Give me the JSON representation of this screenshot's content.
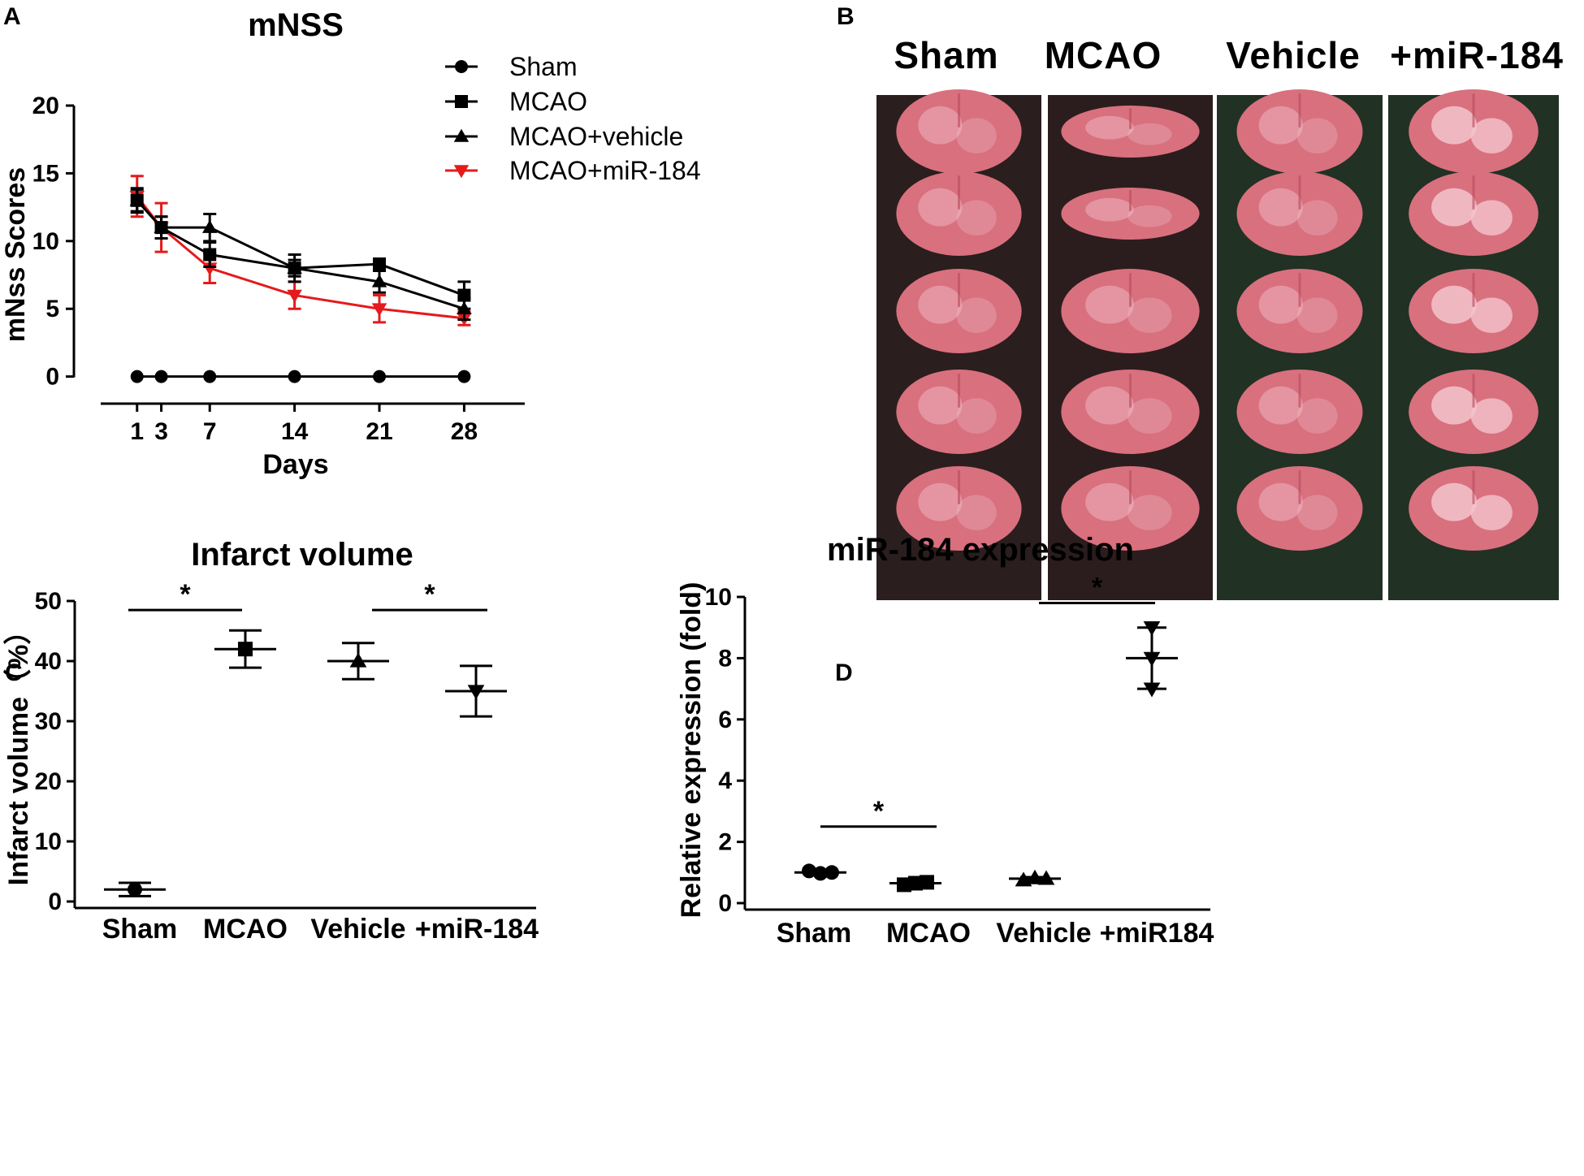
{
  "panels": {
    "A": {
      "letter": "A"
    },
    "B": {
      "letter": "B"
    },
    "C": {
      "letter": "C"
    },
    "D": {
      "letter": "D"
    }
  },
  "photo_panel": {
    "columns": [
      "Sham",
      "MCAO",
      "Vehicle",
      "+miR-184"
    ],
    "slices_per_column": 5,
    "background_colors": [
      "#2a1e1e",
      "#2b1d1d",
      "#213124",
      "#213124"
    ],
    "tissue_color": "#d9707e",
    "tissue_light_color": "#f2c4cc"
  },
  "chart_data": [
    {
      "id": "A",
      "type": "line",
      "title": "mNSS",
      "xlabel": "Days",
      "ylabel": "mNss Scores",
      "x": [
        1,
        3,
        7,
        14,
        21,
        28
      ],
      "xlim": [
        -2,
        33
      ],
      "ylim": [
        -2,
        20
      ],
      "yticks": [
        0,
        5,
        10,
        15,
        20
      ],
      "xticks": [
        1,
        3,
        7,
        14,
        21,
        28
      ],
      "legend_position": "top-right",
      "series": [
        {
          "name": "Sham",
          "marker": "circle",
          "color": "#000000",
          "values": [
            0,
            0,
            0,
            0,
            0,
            0
          ],
          "errors": [
            0,
            0,
            0,
            0,
            0,
            0
          ]
        },
        {
          "name": "MCAO",
          "marker": "square",
          "color": "#000000",
          "values": [
            13,
            11,
            9,
            8,
            8.3,
            6
          ],
          "errors": [
            0.9,
            0.8,
            0.9,
            1.0,
            0.4,
            1.0
          ]
        },
        {
          "name": "MCAO+vehicle",
          "marker": "triangle-up",
          "color": "#000000",
          "values": [
            13,
            11,
            11,
            8,
            7,
            5
          ],
          "errors": [
            0.8,
            0.8,
            1.0,
            0.6,
            0.8,
            0.8
          ]
        },
        {
          "name": "MCAO+miR-184",
          "marker": "triangle-down",
          "color": "#e41a1c",
          "values": [
            13.3,
            11,
            8,
            6,
            5,
            4.3
          ],
          "errors": [
            1.5,
            1.8,
            1.1,
            1.0,
            1.0,
            0.5
          ]
        }
      ]
    },
    {
      "id": "C",
      "type": "scatter",
      "title": "Infarct volume",
      "xlabel": "",
      "ylabel": "Infarct volume（%）",
      "categories": [
        "Sham",
        "MCAO",
        "Vehicle",
        "+miR-184"
      ],
      "markers": [
        "circle",
        "square",
        "triangle-up",
        "triangle-down"
      ],
      "means": [
        2,
        42,
        40,
        35
      ],
      "errors": [
        1.1,
        3.1,
        3.0,
        4.2
      ],
      "ylim": [
        0,
        50
      ],
      "yticks": [
        0,
        10,
        20,
        30,
        40,
        50
      ],
      "significance": [
        {
          "from": 0,
          "to": 1,
          "y": 48.5,
          "label": "*"
        },
        {
          "from": 2,
          "to": 3,
          "y": 48.5,
          "label": "*"
        }
      ]
    },
    {
      "id": "D",
      "type": "scatter",
      "title": "miR-184 expression",
      "xlabel": "",
      "ylabel": "Relative expression (fold)",
      "categories": [
        "Sham",
        "MCAO",
        "Vehicle",
        "+miR184"
      ],
      "markers": [
        "circle",
        "square",
        "triangle-up",
        "triangle-down"
      ],
      "means": [
        1.0,
        0.65,
        0.8,
        8.0
      ],
      "errors": [
        0.05,
        0.05,
        0.05,
        1.0
      ],
      "points": [
        [
          1.05,
          0.97,
          1.0
        ],
        [
          0.6,
          0.65,
          0.68
        ],
        [
          0.75,
          0.82,
          0.8
        ],
        [
          9.0,
          8.0,
          7.0
        ]
      ],
      "ylim": [
        0,
        10
      ],
      "yticks": [
        0,
        2,
        4,
        6,
        8,
        10
      ],
      "significance": [
        {
          "from": 0,
          "to": 1,
          "y": 2.5,
          "label": "*"
        },
        {
          "from": 2.45,
          "to": 3.5,
          "y": 9.8,
          "label": "*"
        }
      ]
    }
  ]
}
